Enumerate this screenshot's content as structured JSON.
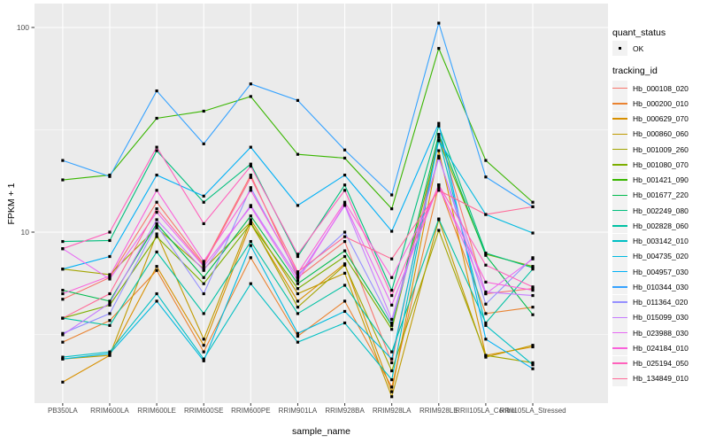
{
  "legend": {
    "quant_status_title": "quant_status",
    "quant_status_items": [
      {
        "label": "OK",
        "shape": "point",
        "color": "#000000"
      }
    ],
    "tracking_id_title": "tracking_id"
  },
  "colors": {
    "panel_bg": "#EBEBEB",
    "grid": "#FFFFFF",
    "legend_key_bg": "#F2F2F2",
    "point": "#000000",
    "tick_mark": "#333333",
    "tick_label": "#4D4D4D",
    "axis_title": "#000000"
  },
  "chart_data": {
    "type": "line",
    "title": "",
    "xlabel": "sample_name",
    "ylabel": "FPKM + 1",
    "yscale": "log10",
    "ylim": [
      1.4,
      131
    ],
    "grid": true,
    "legend_position": "right",
    "x": [
      "PB350LA",
      "RRIM600LA",
      "RRIM600LE",
      "RRIM600SE",
      "RRIM600PE",
      "RRIM901LA",
      "RRIM928BA",
      "RRIM928LA",
      "RRIM928LE",
      "RRII105LA_Control",
      "RRII105LA_Stressed"
    ],
    "y_ticks": [
      {
        "label": "100",
        "value": 100
      },
      {
        "label": "10",
        "value": 10
      }
    ],
    "y_minor_breaks": [
      31.623,
      3.1623
    ],
    "series": [
      {
        "name": "Hb_000108_020",
        "color": "#F8766D",
        "values": [
          4.7,
          6.0,
          14,
          7.0,
          19,
          6.0,
          9.0,
          2.3,
          30,
          5.0,
          5.3
        ]
      },
      {
        "name": "Hb_000200_010",
        "color": "#EA8331",
        "values": [
          2.9,
          3.7,
          6.5,
          2.6,
          7.5,
          3.1,
          4.6,
          1.75,
          17,
          4.0,
          4.3
        ]
      },
      {
        "name": "Hb_000629_070",
        "color": "#D89000",
        "values": [
          1.85,
          2.5,
          6.8,
          2.8,
          11,
          4.6,
          7.0,
          1.66,
          25,
          2.5,
          2.75
        ]
      },
      {
        "name": "Hb_000860_060",
        "color": "#C09B00",
        "values": [
          2.4,
          2.5,
          9.8,
          3.0,
          11.5,
          5.0,
          6.3,
          1.57,
          11.5,
          2.45,
          2.8
        ]
      },
      {
        "name": "Hb_001009_260",
        "color": "#A3A500",
        "values": [
          6.6,
          6.2,
          10.5,
          6.6,
          11.2,
          4.3,
          6.9,
          2.1,
          10.2,
          2.5,
          2.3
        ]
      },
      {
        "name": "Hb_001080_070",
        "color": "#7CAE00",
        "values": [
          3.8,
          4.4,
          9.5,
          5.6,
          11.0,
          5.3,
          7.6,
          3.35,
          28,
          7.8,
          6.8
        ]
      },
      {
        "name": "Hb_001421_090",
        "color": "#39B600",
        "values": [
          18,
          19,
          36,
          39,
          46,
          24,
          23,
          13,
          79,
          22.4,
          14
        ]
      },
      {
        "name": "Hb_001677_220",
        "color": "#00BB4E",
        "values": [
          5.2,
          4.6,
          11,
          6.0,
          12,
          5.6,
          8.1,
          3.5,
          30,
          7.7,
          3.95
        ]
      },
      {
        "name": "Hb_002249_080",
        "color": "#00BF7D",
        "values": [
          9.0,
          9.1,
          25,
          14,
          21.5,
          7.6,
          17,
          5.2,
          33,
          7.9,
          6.7
        ]
      },
      {
        "name": "Hb_002828_060",
        "color": "#00C1A3",
        "values": [
          3.8,
          3.5,
          8.0,
          4.0,
          9.0,
          4.0,
          5.5,
          2.6,
          11.6,
          3.6,
          6.6
        ]
      },
      {
        "name": "Hb_003142_010",
        "color": "#00BFC4",
        "values": [
          2.45,
          2.6,
          5.0,
          2.4,
          5.6,
          2.9,
          3.6,
          1.9,
          29,
          3.5,
          2.25
        ]
      },
      {
        "name": "Hb_004735_020",
        "color": "#00BAE0",
        "values": [
          2.4,
          2.55,
          4.6,
          2.35,
          8.6,
          3.2,
          4.1,
          2.4,
          28,
          12.2,
          9.9
        ]
      },
      {
        "name": "Hb_004957_030",
        "color": "#00B0F6",
        "values": [
          6.6,
          7.6,
          19,
          15,
          26,
          13.5,
          19,
          10.1,
          34,
          3.0,
          2.15
        ]
      },
      {
        "name": "Hb_010344_030",
        "color": "#35A2FF",
        "values": [
          22.4,
          18.7,
          49,
          27,
          53,
          44,
          25.2,
          15.2,
          105,
          18.6,
          13.3
        ]
      },
      {
        "name": "Hb_011364_020",
        "color": "#9590FF",
        "values": [
          3.2,
          4.0,
          10.8,
          5.0,
          16.5,
          6.2,
          10.0,
          3.6,
          23.5,
          4.45,
          7.5
        ]
      },
      {
        "name": "Hb_015099_030",
        "color": "#C77CFF",
        "values": [
          3.15,
          4.5,
          11.5,
          6.5,
          13.5,
          6.0,
          13.5,
          3.75,
          23,
          5.1,
          4.9
        ]
      },
      {
        "name": "Hb_023988_030",
        "color": "#E76BF3",
        "values": [
          8.3,
          5.9,
          12.5,
          6.8,
          13.3,
          5.8,
          13.7,
          4.4,
          17,
          5.0,
          7.4
        ]
      },
      {
        "name": "Hb_024184_010",
        "color": "#FA62DB",
        "values": [
          5.0,
          6.1,
          16,
          7.2,
          16,
          6.3,
          14,
          6.0,
          16.5,
          5.7,
          5.2
        ]
      },
      {
        "name": "Hb_025194_050",
        "color": "#FF62BC",
        "values": [
          8.3,
          10,
          26,
          11,
          21,
          7.8,
          16,
          4.9,
          17,
          6.9,
          5.4
        ]
      },
      {
        "name": "Hb_134849_010",
        "color": "#FF6A98",
        "values": [
          3.8,
          5.0,
          13,
          6.9,
          18.5,
          6.4,
          9.5,
          7.4,
          16,
          12.2,
          13.3
        ]
      }
    ]
  }
}
